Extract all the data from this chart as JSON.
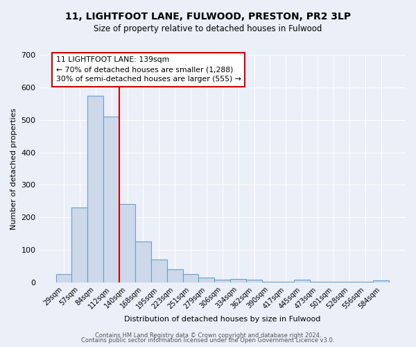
{
  "title1": "11, LIGHTFOOT LANE, FULWOOD, PRESTON, PR2 3LP",
  "title2": "Size of property relative to detached houses in Fulwood",
  "xlabel": "Distribution of detached houses by size in Fulwood",
  "ylabel": "Number of detached properties",
  "categories": [
    "29sqm",
    "57sqm",
    "84sqm",
    "112sqm",
    "140sqm",
    "168sqm",
    "195sqm",
    "223sqm",
    "251sqm",
    "279sqm",
    "306sqm",
    "334sqm",
    "362sqm",
    "390sqm",
    "417sqm",
    "445sqm",
    "473sqm",
    "501sqm",
    "528sqm",
    "556sqm",
    "584sqm"
  ],
  "values": [
    25,
    230,
    575,
    510,
    240,
    125,
    70,
    40,
    25,
    14,
    9,
    10,
    8,
    2,
    2,
    8,
    2,
    2,
    2,
    2,
    6
  ],
  "bar_color": "#cdd8ea",
  "bar_edge_color": "#6b9fc8",
  "redline_x": 3.5,
  "annotation_line1": "11 LIGHTFOOT LANE: 139sqm",
  "annotation_line2": "← 70% of detached houses are smaller (1,288)",
  "annotation_line3": "30% of semi-detached houses are larger (555) →",
  "ylim": [
    0,
    700
  ],
  "yticks": [
    0,
    100,
    200,
    300,
    400,
    500,
    600,
    700
  ],
  "footer1": "Contains HM Land Registry data © Crown copyright and database right 2024.",
  "footer2": "Contains public sector information licensed under the Open Government Licence v3.0.",
  "bg_color": "#eaeff8",
  "grid_color": "#ffffff"
}
